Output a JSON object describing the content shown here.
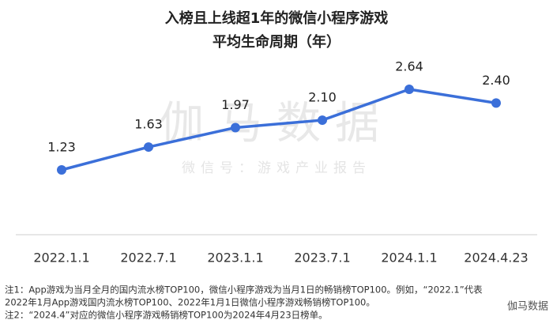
{
  "chart_data": {
    "type": "line",
    "title": "入榜且上线超1年的微信小程序游戏",
    "subtitle": "平均生命周期（年）",
    "categories": [
      "2022.1.1",
      "2022.7.1",
      "2023.1.1",
      "2023.7.1",
      "2024.1.1",
      "2024.4.23"
    ],
    "series": [
      {
        "name": "平均生命周期",
        "color": "#3b6fd9",
        "values": [
          1.23,
          1.63,
          1.97,
          2.1,
          2.64,
          2.4
        ],
        "value_labels": [
          "1.23",
          "1.63",
          "1.97",
          "2.10",
          "2.64",
          "2.40"
        ]
      }
    ],
    "watermark": "伽马数据",
    "watermark_sub": "微信号：游戏产业报告",
    "notes": [
      "注1：App游戏为当月全月的国内流水榜TOP100，微信小程序游戏为当月1日的畅销榜TOP100。例如，“2022.1”代表",
      "2022年1月App游戏国内流水榜TOP100、2022年1月1日微信小程序游戏畅销榜TOP100。",
      "注2：“2024.4”对应的微信小程序游戏畅销榜TOP100为2024年4月23日榜单。"
    ],
    "corner_mark": "伽马数据"
  }
}
